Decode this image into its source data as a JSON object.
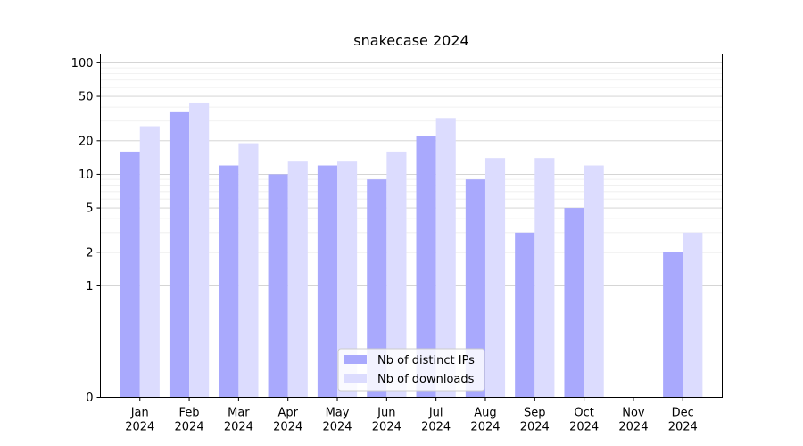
{
  "chart_data": {
    "type": "bar",
    "title": "snakecase 2024",
    "xlabel": "",
    "ylabel": "",
    "categories": [
      [
        "Jan",
        "2024"
      ],
      [
        "Feb",
        "2024"
      ],
      [
        "Mar",
        "2024"
      ],
      [
        "Apr",
        "2024"
      ],
      [
        "May",
        "2024"
      ],
      [
        "Jun",
        "2024"
      ],
      [
        "Jul",
        "2024"
      ],
      [
        "Aug",
        "2024"
      ],
      [
        "Sep",
        "2024"
      ],
      [
        "Oct",
        "2024"
      ],
      [
        "Nov",
        "2024"
      ],
      [
        "Dec",
        "2024"
      ]
    ],
    "series": [
      {
        "name": "Nb of distinct IPs",
        "color": "#a9a9fd",
        "values": [
          16,
          36,
          12,
          10,
          12,
          9,
          22,
          9,
          3,
          5,
          0,
          2
        ]
      },
      {
        "name": "Nb of downloads",
        "color": "#dcdcfe",
        "values": [
          27,
          44,
          19,
          13,
          13,
          16,
          32,
          14,
          14,
          12,
          0,
          3
        ]
      }
    ],
    "yscale": "symlog",
    "yticks": [
      0,
      1,
      2,
      5,
      10,
      20,
      50,
      100
    ],
    "ylim": [
      0,
      120
    ],
    "grid": true,
    "legend_position": "bottom-center"
  }
}
